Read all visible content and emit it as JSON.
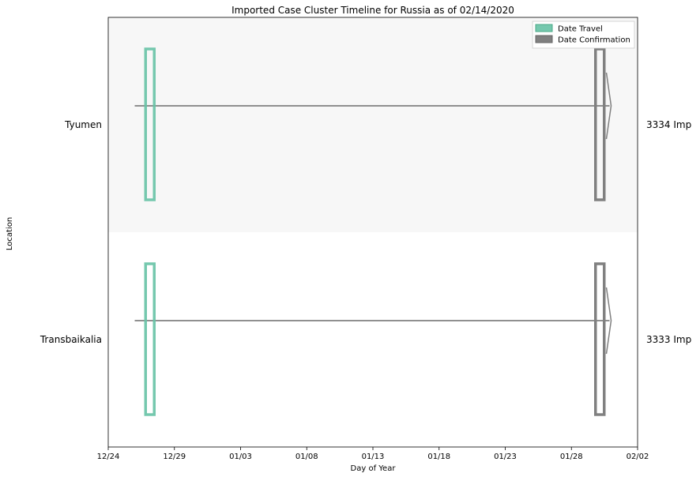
{
  "chart_data": {
    "type": "timeline",
    "title": "Imported Case Cluster Timeline for Russia as of 02/14/2020",
    "xlabel": "Day of Year",
    "ylabel": "Location",
    "x_ticks": [
      "12/24",
      "12/29",
      "01/03",
      "01/08",
      "01/13",
      "01/18",
      "01/23",
      "01/28",
      "02/02"
    ],
    "xlim": [
      "12/24",
      "02/02"
    ],
    "legend": {
      "placement": "top-right",
      "entries": [
        {
          "label": "Date Travel",
          "color": "#66c2a5"
        },
        {
          "label": "Date Confirmation",
          "color": "#808080"
        }
      ]
    },
    "rows": [
      {
        "location": "Tyumen",
        "count_label": "3334 Imp",
        "travel_date": "12/27",
        "confirmation_date": "01/30",
        "line_start": "12/26",
        "line_end": "01/31",
        "band": "#f7f7f7"
      },
      {
        "location": "Transbaikalia",
        "count_label": "3333 Imp",
        "travel_date": "12/27",
        "confirmation_date": "01/30",
        "line_start": "12/26",
        "line_end": "01/31",
        "band": "#ffffff"
      }
    ]
  }
}
